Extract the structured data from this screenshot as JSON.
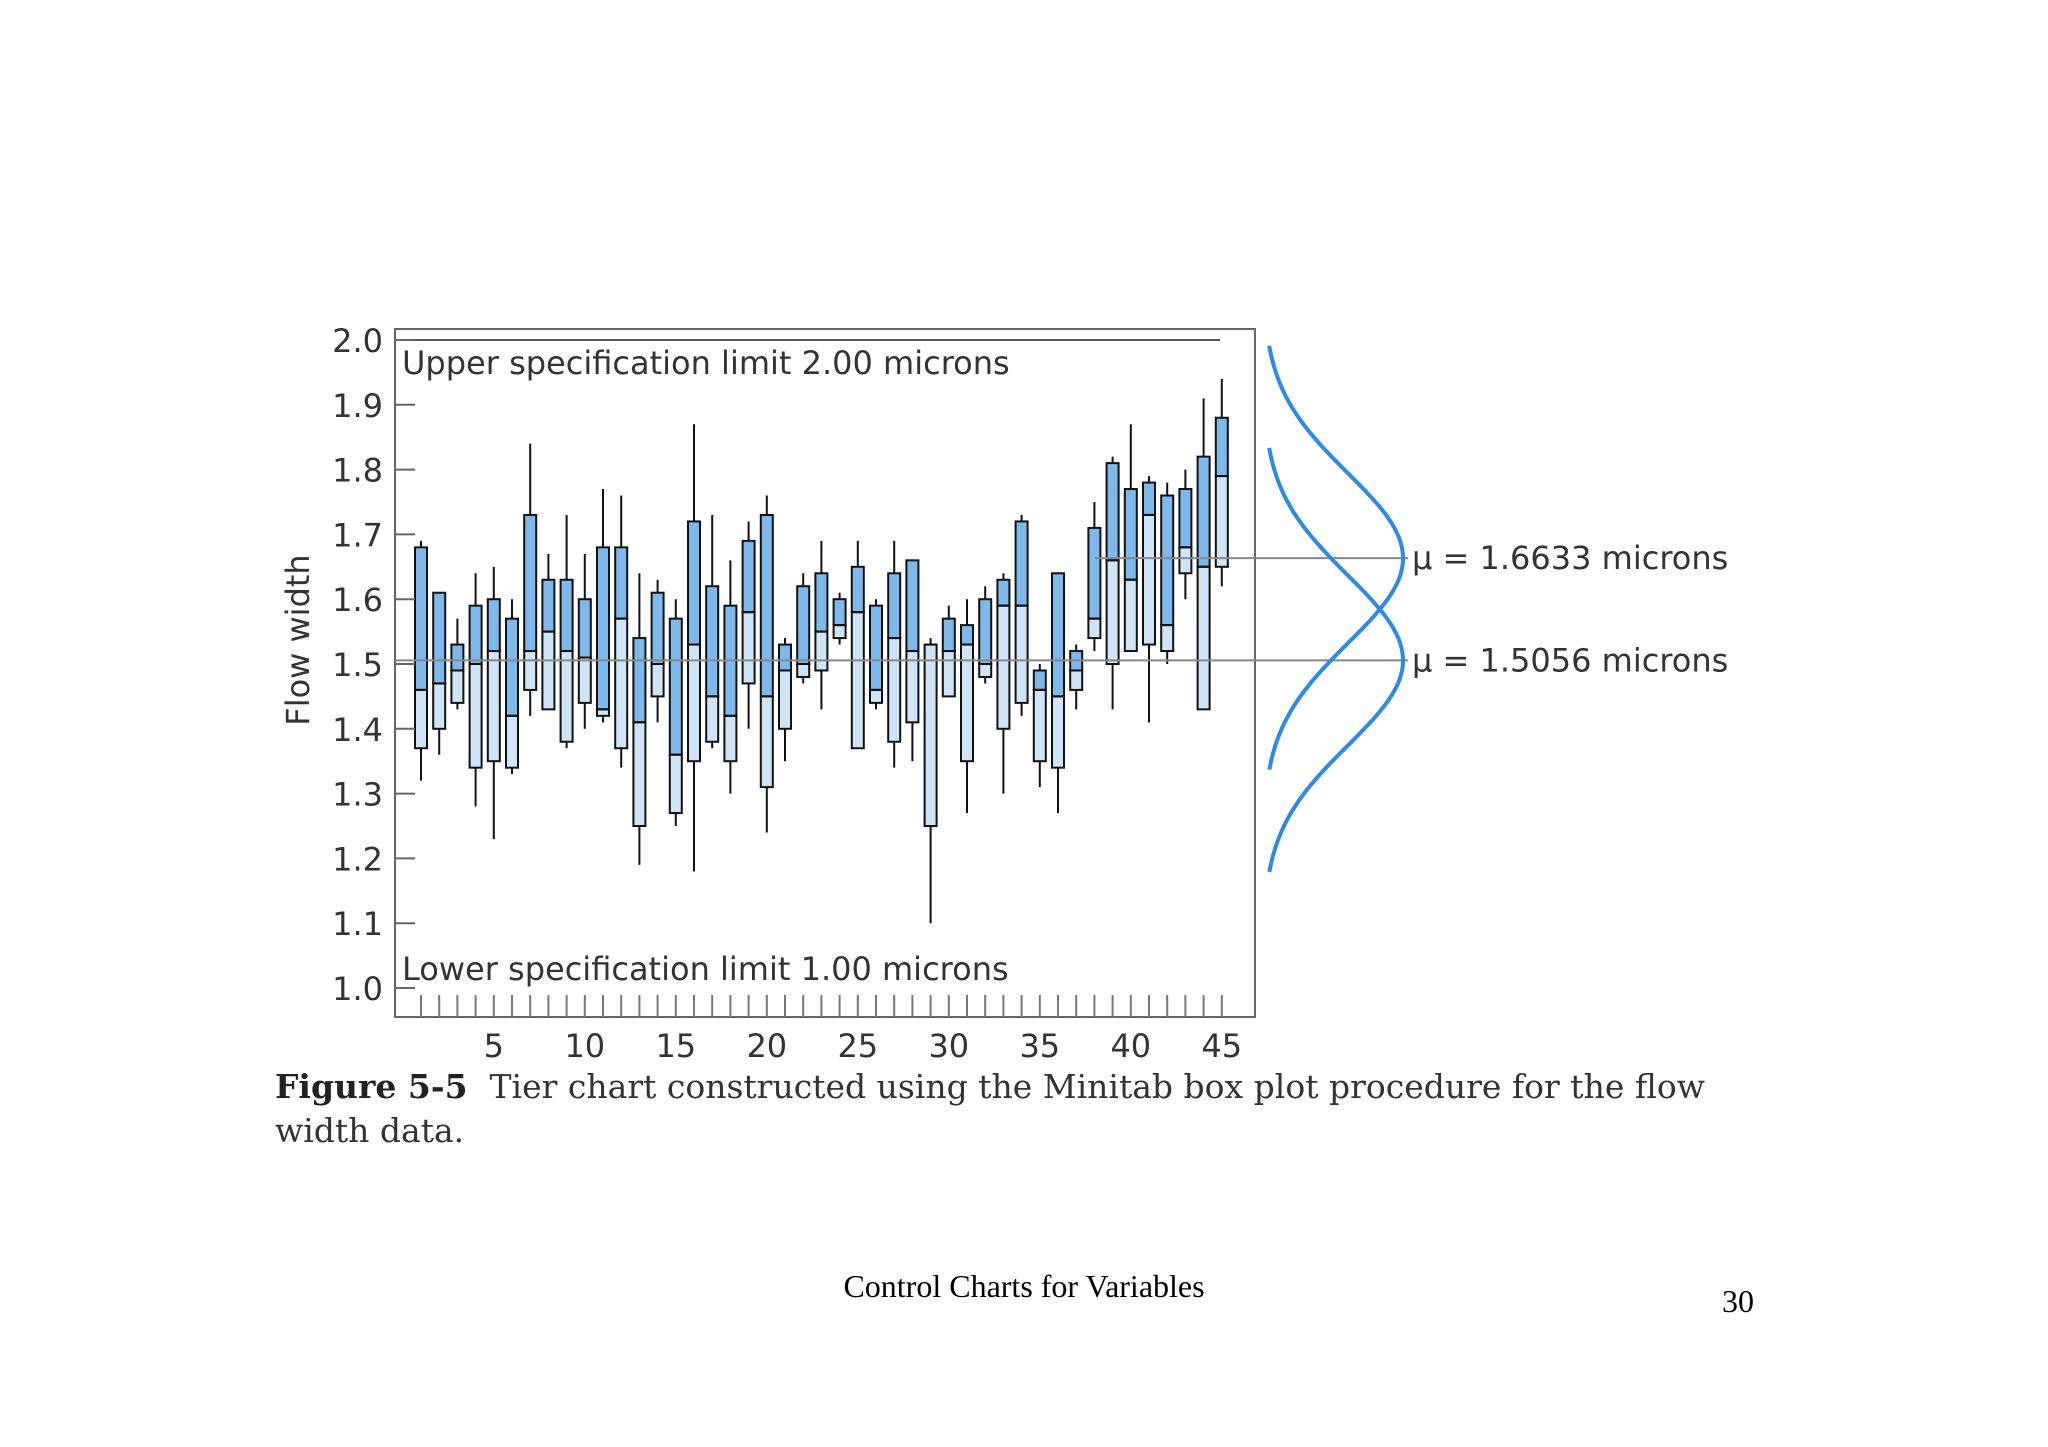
{
  "chart_data": {
    "type": "box",
    "ylabel": "Flow width",
    "xlabel": "",
    "ylim": [
      1.0,
      2.0
    ],
    "yticks": [
      "1.0",
      "1.1",
      "1.2",
      "1.3",
      "1.4",
      "1.5",
      "1.6",
      "1.7",
      "1.8",
      "1.9",
      "2.0"
    ],
    "xticks": [
      "5",
      "10",
      "15",
      "20",
      "25",
      "30",
      "35",
      "40",
      "45"
    ],
    "xlim": [
      1,
      45
    ],
    "grid": false,
    "reference_lines": [
      {
        "label": "Upper specification limit 2.00 microns",
        "value": 2.0
      },
      {
        "label": "Lower specification limit 1.00 microns",
        "value": 1.0
      }
    ],
    "mean_lines": [
      {
        "label": "μ = 1.6633 microns",
        "value": 1.6633
      },
      {
        "label": "μ = 1.5056 microns",
        "value": 1.5056
      }
    ],
    "colors": {
      "box_fill": "#7fb8ea",
      "box_fill_light": "#cfe5f7",
      "curve": "#2f8be0",
      "frame": "#666666"
    },
    "boxes": [
      {
        "x": 1,
        "min": 1.32,
        "q1": 1.37,
        "median": 1.46,
        "q3": 1.68,
        "max": 1.69
      },
      {
        "x": 2,
        "min": 1.36,
        "q1": 1.4,
        "median": 1.47,
        "q3": 1.61,
        "max": 1.61
      },
      {
        "x": 3,
        "min": 1.43,
        "q1": 1.44,
        "median": 1.49,
        "q3": 1.53,
        "max": 1.57
      },
      {
        "x": 4,
        "min": 1.28,
        "q1": 1.34,
        "median": 1.5,
        "q3": 1.59,
        "max": 1.64
      },
      {
        "x": 5,
        "min": 1.23,
        "q1": 1.35,
        "median": 1.52,
        "q3": 1.6,
        "max": 1.65
      },
      {
        "x": 6,
        "min": 1.33,
        "q1": 1.34,
        "median": 1.42,
        "q3": 1.57,
        "max": 1.6
      },
      {
        "x": 7,
        "min": 1.42,
        "q1": 1.46,
        "median": 1.52,
        "q3": 1.73,
        "max": 1.84
      },
      {
        "x": 8,
        "min": 1.43,
        "q1": 1.43,
        "median": 1.55,
        "q3": 1.63,
        "max": 1.67
      },
      {
        "x": 9,
        "min": 1.37,
        "q1": 1.38,
        "median": 1.52,
        "q3": 1.63,
        "max": 1.73
      },
      {
        "x": 10,
        "min": 1.4,
        "q1": 1.44,
        "median": 1.51,
        "q3": 1.6,
        "max": 1.67
      },
      {
        "x": 11,
        "min": 1.41,
        "q1": 1.42,
        "median": 1.43,
        "q3": 1.68,
        "max": 1.77
      },
      {
        "x": 12,
        "min": 1.34,
        "q1": 1.37,
        "median": 1.57,
        "q3": 1.68,
        "max": 1.76
      },
      {
        "x": 13,
        "min": 1.19,
        "q1": 1.25,
        "median": 1.41,
        "q3": 1.54,
        "max": 1.64
      },
      {
        "x": 14,
        "min": 1.41,
        "q1": 1.45,
        "median": 1.5,
        "q3": 1.61,
        "max": 1.63
      },
      {
        "x": 15,
        "min": 1.25,
        "q1": 1.27,
        "median": 1.36,
        "q3": 1.57,
        "max": 1.6
      },
      {
        "x": 16,
        "min": 1.18,
        "q1": 1.35,
        "median": 1.53,
        "q3": 1.72,
        "max": 1.87
      },
      {
        "x": 17,
        "min": 1.37,
        "q1": 1.38,
        "median": 1.45,
        "q3": 1.62,
        "max": 1.73
      },
      {
        "x": 18,
        "min": 1.3,
        "q1": 1.35,
        "median": 1.42,
        "q3": 1.59,
        "max": 1.66
      },
      {
        "x": 19,
        "min": 1.4,
        "q1": 1.47,
        "median": 1.58,
        "q3": 1.69,
        "max": 1.72
      },
      {
        "x": 20,
        "min": 1.24,
        "q1": 1.31,
        "median": 1.45,
        "q3": 1.73,
        "max": 1.76
      },
      {
        "x": 21,
        "min": 1.35,
        "q1": 1.4,
        "median": 1.49,
        "q3": 1.53,
        "max": 1.54
      },
      {
        "x": 22,
        "min": 1.47,
        "q1": 1.48,
        "median": 1.5,
        "q3": 1.62,
        "max": 1.64
      },
      {
        "x": 23,
        "min": 1.43,
        "q1": 1.49,
        "median": 1.55,
        "q3": 1.64,
        "max": 1.69
      },
      {
        "x": 24,
        "min": 1.53,
        "q1": 1.54,
        "median": 1.56,
        "q3": 1.6,
        "max": 1.61
      },
      {
        "x": 25,
        "min": 1.37,
        "q1": 1.37,
        "median": 1.58,
        "q3": 1.65,
        "max": 1.69
      },
      {
        "x": 26,
        "min": 1.43,
        "q1": 1.44,
        "median": 1.46,
        "q3": 1.59,
        "max": 1.6
      },
      {
        "x": 27,
        "min": 1.34,
        "q1": 1.38,
        "median": 1.54,
        "q3": 1.64,
        "max": 1.69
      },
      {
        "x": 28,
        "min": 1.35,
        "q1": 1.41,
        "median": 1.52,
        "q3": 1.66,
        "max": 1.66
      },
      {
        "x": 29,
        "min": 1.1,
        "q1": 1.25,
        "median": 1.53,
        "q3": 1.53,
        "max": 1.54
      },
      {
        "x": 30,
        "min": 1.45,
        "q1": 1.45,
        "median": 1.52,
        "q3": 1.57,
        "max": 1.59
      },
      {
        "x": 31,
        "min": 1.27,
        "q1": 1.35,
        "median": 1.53,
        "q3": 1.56,
        "max": 1.6
      },
      {
        "x": 32,
        "min": 1.47,
        "q1": 1.48,
        "median": 1.5,
        "q3": 1.6,
        "max": 1.62
      },
      {
        "x": 33,
        "min": 1.3,
        "q1": 1.4,
        "median": 1.59,
        "q3": 1.63,
        "max": 1.64
      },
      {
        "x": 34,
        "min": 1.42,
        "q1": 1.44,
        "median": 1.59,
        "q3": 1.72,
        "max": 1.73
      },
      {
        "x": 35,
        "min": 1.31,
        "q1": 1.35,
        "median": 1.46,
        "q3": 1.49,
        "max": 1.5
      },
      {
        "x": 36,
        "min": 1.27,
        "q1": 1.34,
        "median": 1.45,
        "q3": 1.64,
        "max": 1.64
      },
      {
        "x": 37,
        "min": 1.43,
        "q1": 1.46,
        "median": 1.49,
        "q3": 1.52,
        "max": 1.53
      },
      {
        "x": 38,
        "min": 1.52,
        "q1": 1.54,
        "median": 1.57,
        "q3": 1.71,
        "max": 1.75
      },
      {
        "x": 39,
        "min": 1.43,
        "q1": 1.5,
        "median": 1.66,
        "q3": 1.81,
        "max": 1.82
      },
      {
        "x": 40,
        "min": 1.52,
        "q1": 1.52,
        "median": 1.63,
        "q3": 1.77,
        "max": 1.87
      },
      {
        "x": 41,
        "min": 1.41,
        "q1": 1.53,
        "median": 1.73,
        "q3": 1.78,
        "max": 1.79
      },
      {
        "x": 42,
        "min": 1.5,
        "q1": 1.52,
        "median": 1.56,
        "q3": 1.76,
        "max": 1.78
      },
      {
        "x": 43,
        "min": 1.6,
        "q1": 1.64,
        "median": 1.68,
        "q3": 1.77,
        "max": 1.8
      },
      {
        "x": 44,
        "min": 1.43,
        "q1": 1.43,
        "median": 1.65,
        "q3": 1.82,
        "max": 1.91
      },
      {
        "x": 45,
        "min": 1.62,
        "q1": 1.65,
        "median": 1.79,
        "q3": 1.88,
        "max": 1.94
      }
    ]
  },
  "caption": {
    "label": "Figure 5-5",
    "text": "Tier chart constructed using the Minitab box plot procedure for the flow width data."
  },
  "footer": {
    "title": "Control Charts for Variables",
    "page_number": "30"
  }
}
